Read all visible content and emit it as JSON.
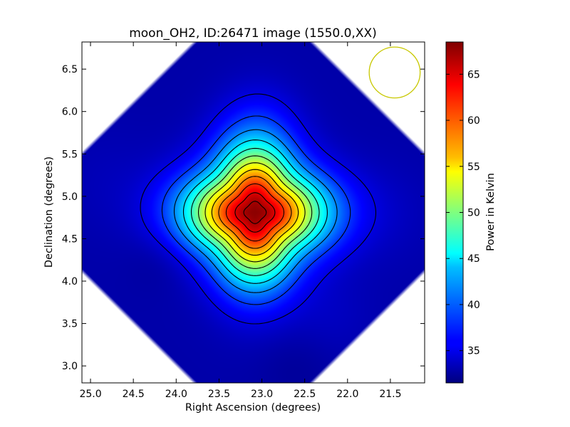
{
  "chart_data": {
    "type": "heatmap",
    "title": "moon_OH2, ID:26471 image (1550.0,XX)",
    "xlabel": "Right Ascension (degrees)",
    "ylabel": "Declination (degrees)",
    "colorbar_label": "Power in Kelvin",
    "xlim": [
      25.1,
      21.1
    ],
    "ylim": [
      2.8,
      6.82
    ],
    "xticks": [
      25.0,
      24.5,
      24.0,
      23.5,
      23.0,
      22.5,
      22.0,
      21.5
    ],
    "xtick_labels": [
      "25.0",
      "24.5",
      "24.0",
      "23.5",
      "23.0",
      "22.5",
      "22.0",
      "21.5"
    ],
    "yticks": [
      3.0,
      3.5,
      4.0,
      4.5,
      5.0,
      5.5,
      6.0,
      6.5
    ],
    "ytick_labels": [
      "3.0",
      "3.5",
      "4.0",
      "4.5",
      "5.0",
      "5.5",
      "6.0",
      "6.5"
    ],
    "colorbar_range": [
      31.5,
      68.5
    ],
    "colorbar_ticks": [
      35,
      40,
      45,
      50,
      55,
      60,
      65
    ],
    "colorbar_tick_labels": [
      "35",
      "40",
      "45",
      "50",
      "55",
      "60",
      "65"
    ],
    "colormap": "jet",
    "contour_color": "#000000",
    "background_value": 33,
    "peak": {
      "ra": 23.08,
      "dec": 4.81,
      "value": 68
    },
    "contour_levels": [
      35,
      38,
      41,
      44,
      47,
      50,
      53,
      56,
      59,
      62,
      65,
      67
    ],
    "beam_marker": {
      "ra": 21.45,
      "dec": 6.46,
      "radius_deg": 0.3,
      "color": "#c8c800"
    },
    "grid": false,
    "legend": "none"
  }
}
